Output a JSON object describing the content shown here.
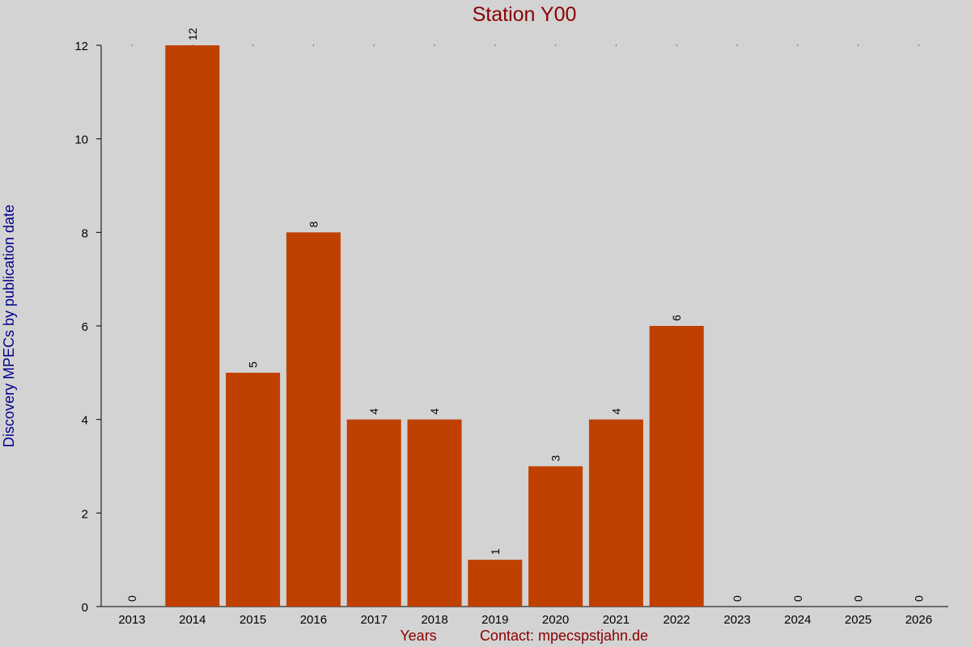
{
  "chart_data": {
    "type": "bar",
    "title": "Station Y00",
    "xlabel": "Years",
    "ylabel": "Discovery MPECs by publication date",
    "contact": "Contact: mpecspstjahn.de",
    "categories": [
      "2013",
      "2014",
      "2015",
      "2016",
      "2017",
      "2018",
      "2019",
      "2020",
      "2021",
      "2022",
      "2023",
      "2024",
      "2025",
      "2026"
    ],
    "values": [
      0,
      12,
      5,
      8,
      4,
      4,
      1,
      3,
      4,
      6,
      0,
      0,
      0,
      0
    ],
    "data_labels": [
      "0",
      "12",
      "5",
      "8",
      "4",
      "4",
      "1",
      "3",
      "4",
      "6",
      "0",
      "0",
      "0",
      "0"
    ],
    "yticks": [
      "0",
      "2",
      "4",
      "6",
      "8",
      "10",
      "12"
    ],
    "ylim": [
      0,
      12
    ],
    "grid": false,
    "colors": {
      "background": "#d3d3d3",
      "bar": "#c04000",
      "title": "#8b0000",
      "ylabel": "#00008b",
      "xlabel": "#8b0000",
      "axis": "#000000"
    }
  }
}
